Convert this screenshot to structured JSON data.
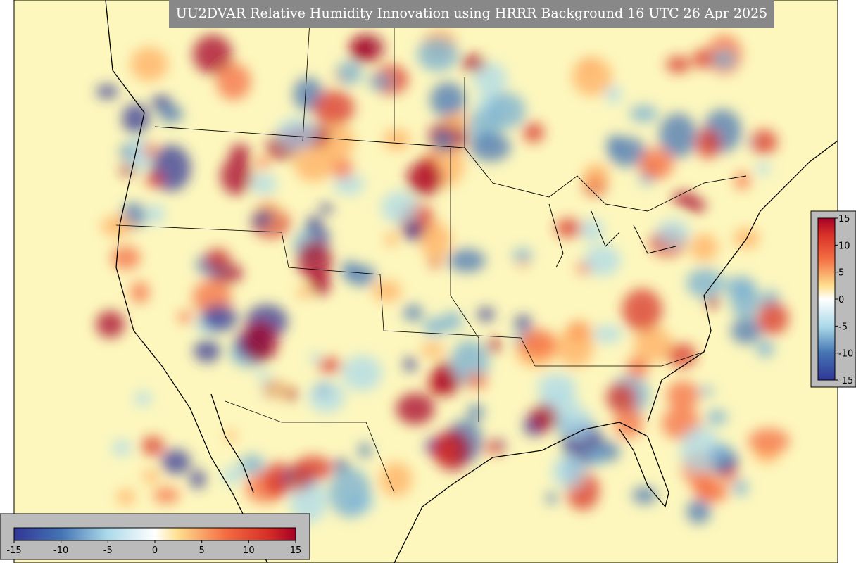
{
  "title": "UU2DVAR Relative Humidity Innovation using HRRR Background 16 UTC 26 Apr 2025",
  "colorbar_horizontal": {
    "range": [
      -15,
      15
    ],
    "ticks": [
      -15,
      -10,
      -5,
      0,
      5,
      10,
      15
    ]
  },
  "colorbar_vertical": {
    "range": [
      -15,
      15
    ],
    "ticks": [
      15,
      10,
      5,
      0,
      -5,
      -10,
      -15
    ]
  }
}
